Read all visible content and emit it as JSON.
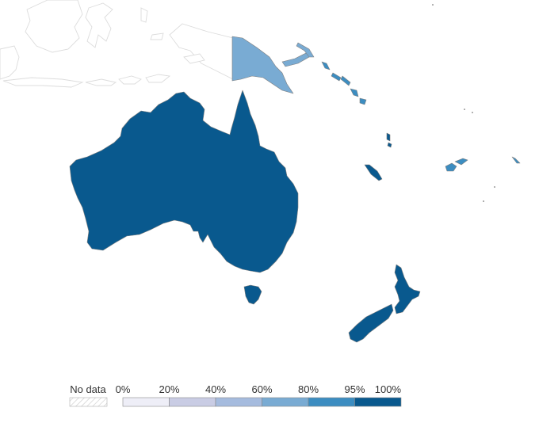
{
  "colors": {
    "background": "#ffffff",
    "no_data_outline": "#dcdcdc",
    "stroke": "#7f7f7f"
  },
  "regions": [
    {
      "name": "Australia",
      "bin": "95-100%",
      "color": "#09598e"
    },
    {
      "name": "Tasmania",
      "bin": "95-100%",
      "color": "#09598e"
    },
    {
      "name": "New Zealand",
      "bin": "95-100%",
      "color": "#09598e"
    },
    {
      "name": "Papua New Guinea",
      "bin": "60-80%",
      "color": "#79abd3"
    },
    {
      "name": "Solomon Islands",
      "bin": "80-95%",
      "color": "#3c8dc1"
    },
    {
      "name": "Vanuatu",
      "bin": "95-100%",
      "color": "#09598e"
    },
    {
      "name": "New Caledonia",
      "bin": "95-100%",
      "color": "#09598e"
    },
    {
      "name": "Fiji",
      "bin": "80-95%",
      "color": "#3c8dc1"
    }
  ],
  "legend": {
    "no_data_label": "No data",
    "tick_labels": [
      "0%",
      "20%",
      "40%",
      "60%",
      "80%",
      "95%",
      "100%"
    ],
    "bins": [
      {
        "range": "0-20%",
        "color": "#eeeef7"
      },
      {
        "range": "20-40%",
        "color": "#c9cce4"
      },
      {
        "range": "40-60%",
        "color": "#a5bbde"
      },
      {
        "range": "60-80%",
        "color": "#79abd3"
      },
      {
        "range": "80-95%",
        "color": "#3c8dc1"
      },
      {
        "range": "95-100%",
        "color": "#09598e"
      }
    ]
  }
}
